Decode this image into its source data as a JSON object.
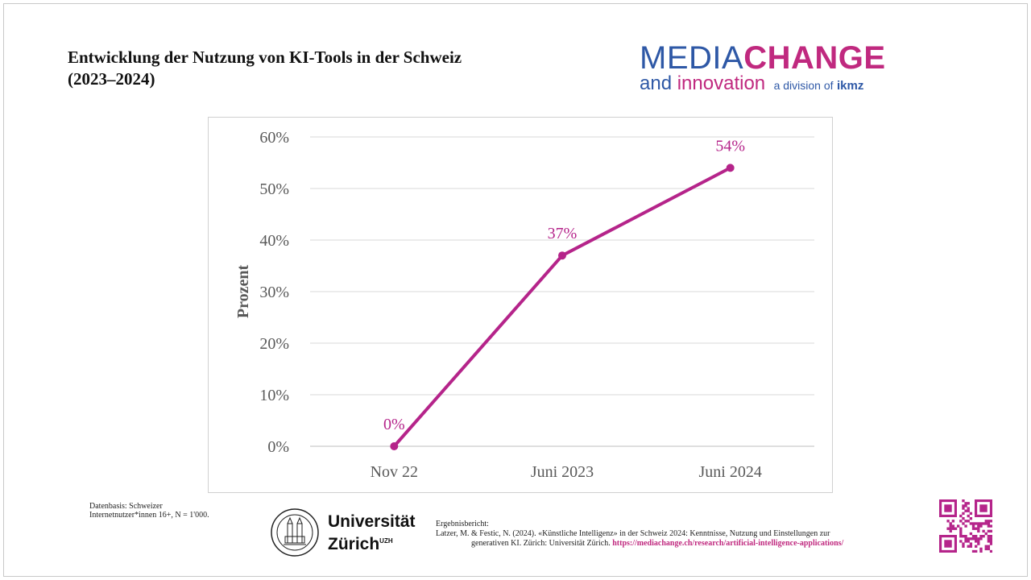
{
  "title": {
    "line1": "Entwicklung der Nutzung von KI-Tools in der Schweiz",
    "line2": "(2023–2024)"
  },
  "brand": {
    "media": "MEDIA",
    "change": "CHANGE",
    "and": "and ",
    "innovation": "innovation",
    "division": "a division of",
    "ikmz": "ikmz"
  },
  "chart_data": {
    "type": "line",
    "categories": [
      "Nov 22",
      "Juni 2023",
      "Juni 2024"
    ],
    "values": [
      0,
      37,
      54
    ],
    "data_labels": [
      "0%",
      "37%",
      "54%"
    ],
    "title": "",
    "xlabel": "",
    "ylabel": "Prozent",
    "ylim": [
      0,
      60
    ],
    "yticks": [
      0,
      10,
      20,
      30,
      40,
      50,
      60
    ],
    "ytick_labels": [
      "0%",
      "10%",
      "20%",
      "30%",
      "40%",
      "50%",
      "60%"
    ],
    "grid": true,
    "legend": "none",
    "color": "#b5248a"
  },
  "footer": {
    "data_basis_line1": "Datenbasis: Schweizer",
    "data_basis_line2": "Internetnutzer*innen 16+, N = 1'000.",
    "uzh_line1": "Universität",
    "uzh_line2": "Zürich",
    "uzh_sup": "UZH",
    "report_label": "Ergebnisbericht:",
    "report_citation_1": "Latzer, M. & Festic, N. (2024). «Künstliche Intelligenz» in der Schweiz 2024: Kenntnisse, Nutzung und Einstellungen zur",
    "report_citation_2": "generativen KI. Zürich: Universität Zürich.",
    "report_link": "https://mediachange.ch/research/artificial-intelligence-applications/"
  }
}
